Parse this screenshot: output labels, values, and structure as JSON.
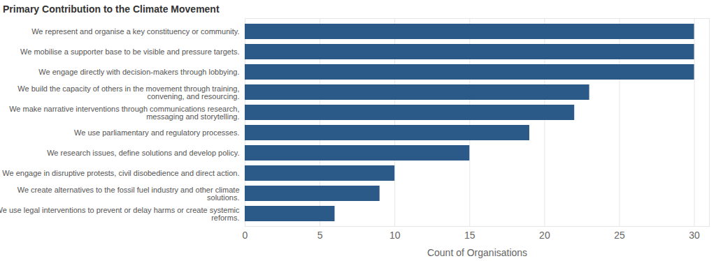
{
  "chart_data": {
    "type": "bar",
    "orientation": "horizontal",
    "title": "Primary Contribution to the Climate Movement",
    "xlabel": "Count of Organisations",
    "categories": [
      "We represent and organise a key constituency or community.",
      "We mobilise a supporter base to be visible and pressure targets.",
      "We engage directly with decision-makers through lobbying.",
      "We build the capacity of others in the movement through training, convening, and resourcing.",
      "We make narrative interventions through communications research, messaging and storytelling.",
      "We use parliamentary and regulatory processes.",
      "We research issues, define solutions and develop policy.",
      "We engage in disruptive protests, civil disobedience and direct action.",
      "We create alternatives to the fossil fuel industry and other climate solutions.",
      "We use legal interventions to prevent or delay harms or create systemic reforms."
    ],
    "values": [
      30,
      30,
      30,
      23,
      22,
      19,
      15,
      10,
      9,
      6
    ],
    "color": "#2c5a88",
    "xlim": [
      0,
      31
    ],
    "xticks": [
      0,
      5,
      10,
      15,
      20,
      25,
      30
    ],
    "grid": true
  }
}
